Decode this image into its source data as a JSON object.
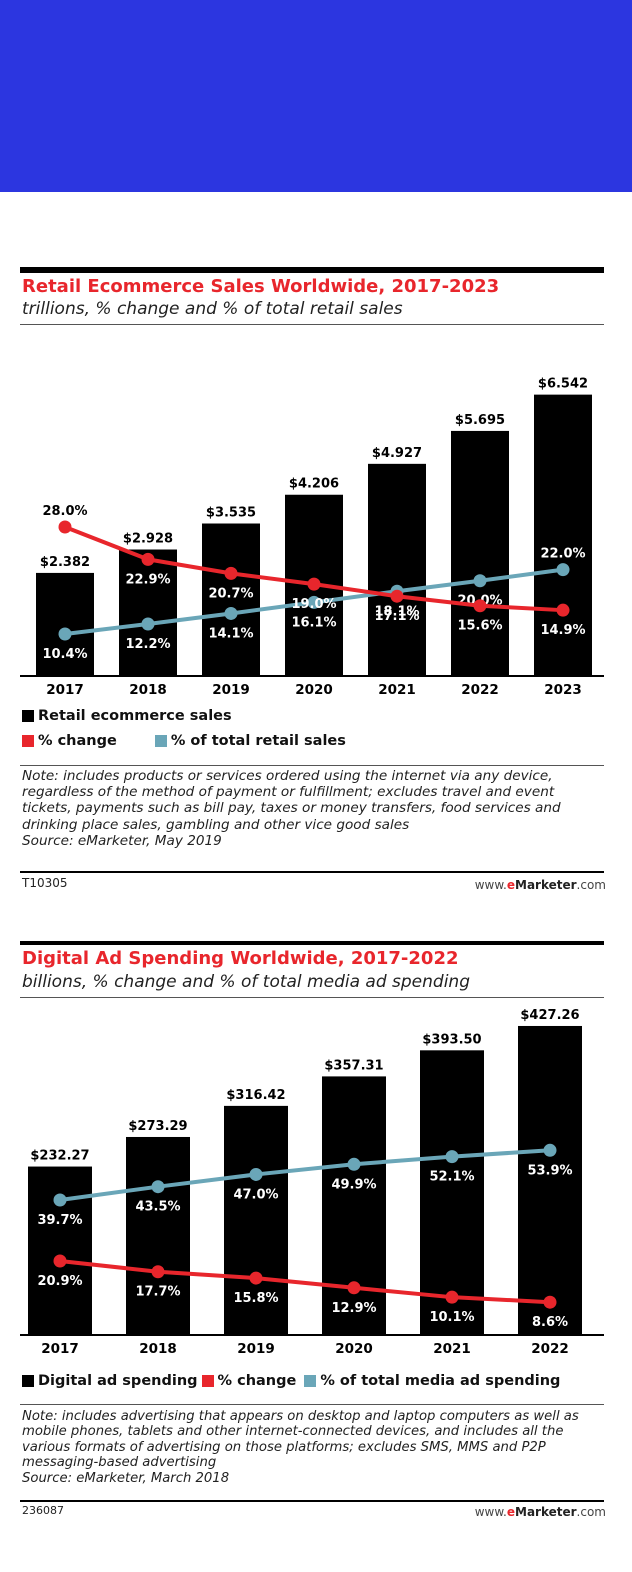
{
  "chart_data": [
    {
      "type": "bar",
      "title": "Retail Ecommerce Sales Worldwide, 2017-2023",
      "subtitle": "trillions, % change and % of total retail sales",
      "categories": [
        "2017",
        "2018",
        "2019",
        "2020",
        "2021",
        "2022",
        "2023"
      ],
      "series": [
        {
          "name": "Retail ecommerce sales",
          "type": "bar",
          "color": "#000000",
          "values": [
            2.382,
            2.928,
            3.535,
            4.206,
            4.927,
            5.695,
            6.542
          ],
          "labels": [
            "$2.382",
            "$2.928",
            "$3.535",
            "$4.206",
            "$4.927",
            "$5.695",
            "$6.542"
          ]
        },
        {
          "name": "% change",
          "type": "line",
          "color": "#e8262c",
          "values": [
            28.0,
            22.9,
            20.7,
            19.0,
            17.1,
            15.6,
            14.9
          ],
          "labels": [
            "28.0%",
            "22.9%",
            "20.7%",
            "19.0%",
            "17.1%",
            "15.6%",
            "14.9%"
          ]
        },
        {
          "name": "% of total retail sales",
          "type": "line",
          "color": "#6aa6b8",
          "values": [
            10.4,
            12.2,
            14.1,
            16.1,
            18.1,
            20.0,
            22.0
          ],
          "labels": [
            "10.4%",
            "12.2%",
            "14.1%",
            "16.1%",
            "18.1%",
            "20.0%",
            "22.0%"
          ]
        }
      ],
      "ylim": [
        0,
        7
      ],
      "legend_position": "bottom",
      "note": "Note: includes products or services ordered using the internet via any device, regardless of the method of payment or fulfillment; excludes travel and event tickets, payments such as bill pay, taxes or money transfers, food services and drinking place sales, gambling and other vice good sales",
      "source": "Source: eMarketer, May 2019",
      "code": "T10305"
    },
    {
      "type": "bar",
      "title": "Digital Ad Spending Worldwide, 2017-2022",
      "subtitle": "billions, % change and % of total media ad spending",
      "categories": [
        "2017",
        "2018",
        "2019",
        "2020",
        "2021",
        "2022"
      ],
      "series": [
        {
          "name": "Digital ad spending",
          "type": "bar",
          "color": "#000000",
          "values": [
            232.27,
            273.29,
            316.42,
            357.31,
            393.5,
            427.26
          ],
          "labels": [
            "$232.27",
            "$273.29",
            "$316.42",
            "$357.31",
            "$393.50",
            "$427.26"
          ]
        },
        {
          "name": "% change",
          "type": "line",
          "color": "#e8262c",
          "values": [
            20.9,
            17.7,
            15.8,
            12.9,
            10.1,
            8.6
          ],
          "labels": [
            "20.9%",
            "17.7%",
            "15.8%",
            "12.9%",
            "10.1%",
            "8.6%"
          ]
        },
        {
          "name": "% of total media ad spending",
          "type": "line",
          "color": "#6aa6b8",
          "values": [
            39.7,
            43.5,
            47.0,
            49.9,
            52.1,
            53.9
          ],
          "labels": [
            "39.7%",
            "43.5%",
            "47.0%",
            "49.9%",
            "52.1%",
            "53.9%"
          ]
        }
      ],
      "ylim": [
        0,
        430
      ],
      "legend_position": "bottom",
      "note": "Note: includes advertising that appears on desktop and laptop computers as well as mobile phones, tablets and other internet-connected devices, and includes all the various formats of advertising on those platforms; excludes SMS, MMS and P2P messaging-based advertising",
      "source": "Source: eMarketer, March 2018",
      "code": "236087"
    }
  ],
  "footer": {
    "brand_pre": "www.",
    "brand_e": "e",
    "brand_mid": "Marketer",
    "brand_post": ".com"
  }
}
